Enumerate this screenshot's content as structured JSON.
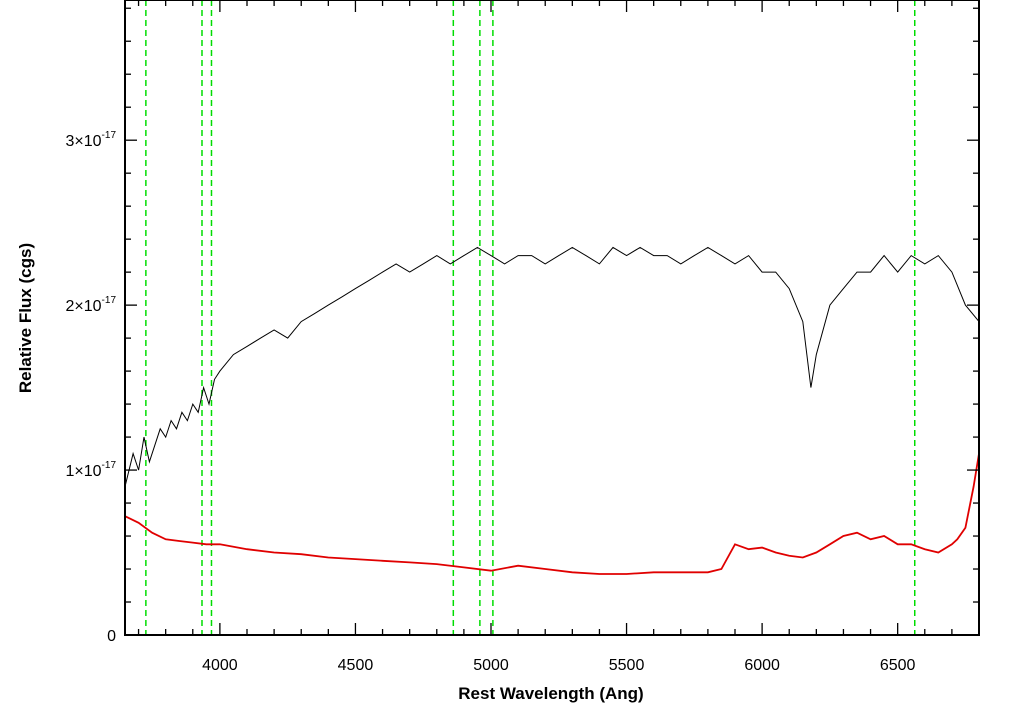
{
  "chart_data": {
    "type": "line",
    "xlabel": "Rest Wavelength (Ang)",
    "ylabel": "Relative Flux (cgs)",
    "xlim": [
      3650,
      6800
    ],
    "ylim": [
      0,
      3.85e-17
    ],
    "x_ticks": [
      4000,
      4500,
      5000,
      5500,
      6000,
      6500
    ],
    "x_tick_labels": [
      "4000",
      "4500",
      "5000",
      "5500",
      "6000",
      "6500"
    ],
    "y_ticks": [
      0,
      1e-17,
      2e-17,
      3e-17
    ],
    "y_tick_labels": [
      {
        "mantissa": "0",
        "exponent": ""
      },
      {
        "mantissa": "1×10",
        "exponent": "-17"
      },
      {
        "mantissa": "2×10",
        "exponent": "-17"
      },
      {
        "mantissa": "3×10",
        "exponent": "-17"
      }
    ],
    "grid": false,
    "colors": {
      "spectrum": "#000000",
      "error": "#e00000",
      "lines": "#00dd00"
    },
    "vertical_lines": [
      3727,
      3934,
      3969,
      4861,
      4959,
      5007,
      6563
    ],
    "series": [
      {
        "color": "#000000",
        "x": [
          3650,
          3680,
          3700,
          3720,
          3740,
          3760,
          3780,
          3800,
          3820,
          3840,
          3860,
          3880,
          3900,
          3920,
          3940,
          3960,
          3980,
          4000,
          4050,
          4100,
          4150,
          4200,
          4250,
          4300,
          4350,
          4400,
          4450,
          4500,
          4550,
          4600,
          4650,
          4700,
          4750,
          4800,
          4850,
          4900,
          4950,
          5000,
          5050,
          5100,
          5150,
          5200,
          5250,
          5300,
          5350,
          5400,
          5450,
          5500,
          5550,
          5600,
          5650,
          5700,
          5750,
          5800,
          5850,
          5900,
          5950,
          6000,
          6050,
          6100,
          6150,
          6180,
          6200,
          6250,
          6300,
          6350,
          6400,
          6450,
          6500,
          6550,
          6600,
          6650,
          6700,
          6750,
          6800
        ],
        "y": [
          9e-18,
          1.1e-17,
          1e-17,
          1.2e-17,
          1.05e-17,
          1.15e-17,
          1.25e-17,
          1.2e-17,
          1.3e-17,
          1.25e-17,
          1.35e-17,
          1.3e-17,
          1.4e-17,
          1.35e-17,
          1.5e-17,
          1.4e-17,
          1.55e-17,
          1.6e-17,
          1.7e-17,
          1.75e-17,
          1.8e-17,
          1.85e-17,
          1.8e-17,
          1.9e-17,
          1.95e-17,
          2e-17,
          2.05e-17,
          2.1e-17,
          2.15e-17,
          2.2e-17,
          2.25e-17,
          2.2e-17,
          2.25e-17,
          2.3e-17,
          2.25e-17,
          2.3e-17,
          2.35e-17,
          2.3e-17,
          2.25e-17,
          2.3e-17,
          2.3e-17,
          2.25e-17,
          2.3e-17,
          2.35e-17,
          2.3e-17,
          2.25e-17,
          2.35e-17,
          2.3e-17,
          2.35e-17,
          2.3e-17,
          2.3e-17,
          2.25e-17,
          2.3e-17,
          2.35e-17,
          2.3e-17,
          2.25e-17,
          2.3e-17,
          2.2e-17,
          2.2e-17,
          2.1e-17,
          1.9e-17,
          1.5e-17,
          1.7e-17,
          2e-17,
          2.1e-17,
          2.2e-17,
          2.2e-17,
          2.3e-17,
          2.2e-17,
          2.3e-17,
          2.25e-17,
          2.3e-17,
          2.2e-17,
          2e-17,
          1.9e-17
        ]
      },
      {
        "color": "#e00000",
        "x": [
          3650,
          3700,
          3750,
          3800,
          3850,
          3900,
          3950,
          4000,
          4100,
          4200,
          4300,
          4400,
          4500,
          4600,
          4700,
          4800,
          4900,
          5000,
          5100,
          5200,
          5300,
          5400,
          5500,
          5600,
          5700,
          5800,
          5850,
          5900,
          5950,
          6000,
          6050,
          6100,
          6150,
          6200,
          6250,
          6300,
          6350,
          6400,
          6450,
          6500,
          6550,
          6600,
          6650,
          6700,
          6720,
          6750,
          6780,
          6800
        ],
        "y": [
          7.2e-18,
          6.8e-18,
          6.2e-18,
          5.8e-18,
          5.7e-18,
          5.6e-18,
          5.5e-18,
          5.5e-18,
          5.2e-18,
          5e-18,
          4.9e-18,
          4.7e-18,
          4.6e-18,
          4.5e-18,
          4.4e-18,
          4.3e-18,
          4.1e-18,
          3.9e-18,
          4.2e-18,
          4e-18,
          3.8e-18,
          3.7e-18,
          3.7e-18,
          3.8e-18,
          3.8e-18,
          3.8e-18,
          4e-18,
          5.5e-18,
          5.2e-18,
          5.3e-18,
          5e-18,
          4.8e-18,
          4.7e-18,
          5e-18,
          5.5e-18,
          6e-18,
          6.2e-18,
          5.8e-18,
          6e-18,
          5.5e-18,
          5.5e-18,
          5.2e-18,
          5e-18,
          5.5e-18,
          5.8e-18,
          6.5e-18,
          9e-18,
          1.1e-17
        ]
      }
    ]
  }
}
